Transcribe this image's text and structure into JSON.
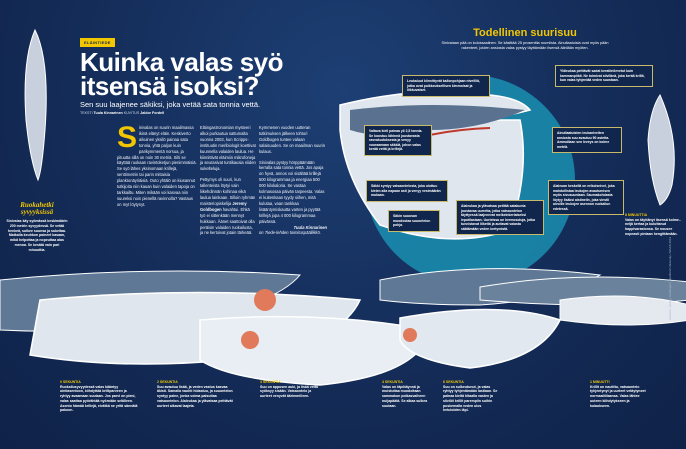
{
  "header": {
    "kicker": "ELÄINTIEDE",
    "title": "Kuinka valas syö itsensä isoksi?",
    "subtitle": "Sen suu laajenee säkiksi, joka vetää sata tonnia vettä.",
    "byline_text_label": "TEKSTI",
    "byline_text": "Tuula Kinnarinen",
    "byline_art_label": "KUVITUS",
    "byline_art": "Jaldor Fordell"
  },
  "body": {
    "dropcap": "S",
    "col1": "inivalas on suurin maailmassa ikinä elänyt eläin. Keskiverto aikuinen yksilö painaa sata tonnia, yhtä paljon kuin parikymmentä norsua, ja pituutta sillä on noin 30 metriä. Silti se käyttää ruokaan ravintoketjun pienimmäisiä. Se syö lähes yksinomaan krillejä, senttimetrin tai parin mittaisia planktonäyriäisiä. Outo yhtälö on kiusannut tutkijoita niin kauan kuin valaiden tapoja on tarkkailtu. Miten mikään voi kasvaa niin suureksi noin pienellä ravinnolla? Vastaus on myt löytynyt.",
    "col2a": "Eläingastronomian mysteeri alkoi purkautua sattumalta vuonna 2003, kun Scripps-instituutin meribiologit koettivat kuunnella valaiden laulua. He kiinnittivät eläimiin mikrofoneja ja seurasivat tuntikausia niiden sukelteluja.",
    "col2b_pre": "Pettymys oli suuri, kun tallenteista löytyi vain liikehdinnän kohinaa eikä laulua lainkaan. Silloin ryhmän maisteriopiskelija ",
    "col2b_name": "Jeremy Goldbogen",
    "col2b_post": " havahtui. Ehkä työ ei sittenkään mennyt hukkaan. Äänet saattoivat olla peräisin valaiden ruokailusta, ja ne kertoivat jotain tärkeää.",
    "col3a": "Kymmenen vuoden uutteran tutkimuksen jälkeen tohtori Goldbogen tuntee valaan salaisuuden. Se on maailman suurin kulaus.",
    "col3b": "Sinivalas pystyy hörppäämään kerralla sata tonnia vettä. Jos apaja on hyvä, annos voi sisältää krillejä 500 kilogrammaa ja energiaa 500 000 kilokaloria. Se vastaa kolmasosaa päivän tarpeesta. Valas ei kuitenkaan tyydy siihen, mitä kulutaa, vaan tankkaa lisääntymiskautta varten ja pyytää krillejä jopa 4 000 kilogrammaa päivässä.",
    "sig_name": "Tuula Kinnarinen",
    "sig_role": "on Tiede-lehden toimituspäällikkö."
  },
  "sidebar": {
    "heading": "Ruokahetki syvyyksissä",
    "text": "Sinivalas käy syömässä keskimäärin 200 metrin syvyydessä. Se vetää henkeä, sulkee suunsa ja sukeltaa. Matkalla keuhkon paineet kasaan, mikä helpottaa ja nopeuttaa alas menoa. Se kestää vain pari minuuttia."
  },
  "infographic": {
    "title": "Todellinen suurisuu",
    "intro": "Sinivalaan pää on kolossaalinen. Se käsittää 25 prosenttia ruumiista. Ainutlaatuisia ovat myös pään rakenteet, joiden ansiosta valas pystyy täyttämään itsensä äärilään myöten.",
    "callouts": [
      "Leukaluut kiinnittyvät kallonpohjaan nivelillä, jotka ovat poikkeuksellisen kimmoisat ja liikkuvaiset.",
      "Yläleukaa peittävät sadat keratiinilevetut kuin kammanpiikit. Ne toimivat siivilänä, joka kerää krillit, kun valas tyhjentää veden suustaan.",
      "Valtava kieli painaa yli 2,5 tonnia. Se koostuu lähinnä joustavasta rasvakudoksesta ja venyy vuoraamaan säkkiä, johon valas kerää vettä ja krillejä.",
      "Säkki syntyy vatsaontelosta, joka ulottuu kielen alla napaan asti ja venyy vesimäärän mukaan.",
      "Säkin suuosan muodostaa suuontelon pohja.",
      "Alaleukaa ja ylävatsaa peittää satakunta joustavaa uurretta, jotka vatsaontelon täyttyessä laajenevat melkeinkertaiseksi lepotilastaan. Uurteissa on hermosoluja, jotka tunnistavat liikettä ja auttavat valasta säätämään veden kertymistä.",
      "Ainutlaatuisten leukanivelten ansiosta suu avautuu 90 astetta. Ammollaan sen leveys on kolme metriä.",
      "Alaleuan keskellä on erikoisnivel, joka mahdollistaa leukojen avautumisen myös sivusuuntaan. Saumakohdasta löytyy lisäksi aistinelin, joka viestii aivoille leukojen asennon ruokailun edetessä."
    ]
  },
  "timeline": [
    {
      "label": "0 SEKUNTIA",
      "text": "Ruokailusyvyydessä valas kääntyy uintiasentoon, kiihdyttää krilliparveen ja ryhtyy avaamaan suutaan. Jos parvi on pieni, valas saattaa pyörähtää nyörnään selälleen. Asento hämää krillejä, eivätkä ne yritä sännätä pakoon."
    },
    {
      "label": "2 SEKUNTIA",
      "text": "Suu avautuu lisää, ja veden vastus kasvaa äkisti. Samalla vauhti hidastuu, ja suuontelon syntyy paine, jonka voima paisuttaa vatsaontelon. Alaleukaa ja ylävatsaa peittävät uurteet alkavat laajeta."
    },
    {
      "label": "3 SEKUNTIA",
      "text": "Suu on apposen auki, ja lisää vettä syöksyy sisään. Vatsaontelo ja uurteet venyvät äärimmilleen."
    },
    {
      "label": "4 SEKUNTIA",
      "text": "Valas on täpötäynnä ja muistuttaa muodoltaan sammakon poikasvaiheen nuijapäätä. Se alkaa sulkea suutaan."
    },
    {
      "label": "6 SEKUNTIA",
      "text": "Suu on sulkeutunut, ja valas ryhtyy tyhjentämään lastiaan. Se painaa kieltä hitaalla vasten ja siivilöi krillit parempiin suihin puskemalla veden ulos hetuloiden läpi."
    },
    {
      "label": "1 MINUUTTI",
      "text": "Krillit on nautittu, vatsaontelo tyhjentynyt ja uurteet vetäytyneet normaalitilaansa. Valas lähtee uuteen kiihdytykseen ja kulaukseen."
    },
    {
      "label": "8 MINUUTTIA",
      "text": "Valas on täyttänyt itsensä kolme–neljä kertaa ja kuluttanut happivarastonsa. Se nousee nopeasti pintaan hengittämään."
    }
  ],
  "credit": "Aineisto: Jeremy Goldbogen, Stanford University / MAAS 2013",
  "colors": {
    "background": "#142c58",
    "accent": "#f2c700",
    "teal": "#1aa0b8",
    "krill": "#e07a5a"
  }
}
